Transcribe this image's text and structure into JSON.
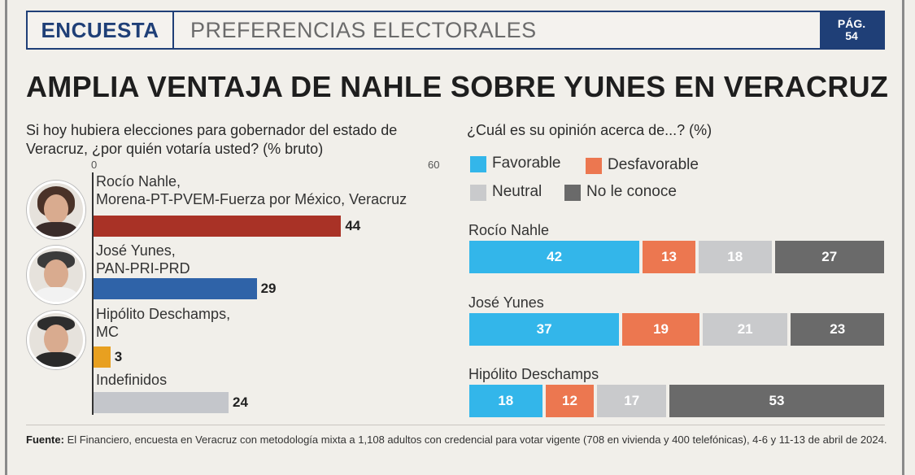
{
  "header": {
    "tag": "ENCUESTA",
    "section": "PREFERENCIAS ELECTORALES",
    "page_line1": "PÁG.",
    "page_line2": "54"
  },
  "headline": "AMPLIA VENTAJA DE NAHLE SOBRE YUNES EN VERACRUZ",
  "colors": {
    "navy": "#1f3f77",
    "nahle": "#a93226",
    "yunes": "#2f63a8",
    "deschamps": "#e8a020",
    "undecided": "#c4c6cb",
    "favorable": "#33b6ea",
    "desfavorable": "#ec7750",
    "neutral": "#c9cacc",
    "no_conoce": "#6a6a6a"
  },
  "chart_data": [
    {
      "type": "bar",
      "title": "Si hoy hubiera elecciones para gobernador del estado de Veracruz,  ¿por quién votaría usted? (% bruto)",
      "xlim": [
        0,
        60
      ],
      "tick_min": "0",
      "tick_max": "60",
      "categories": [
        {
          "name": "Rocío Nahle,",
          "party": "Morena-PT-PVEM-Fuerza por México, Veracruz"
        },
        {
          "name": "José Yunes,",
          "party": "PAN-PRI-PRD"
        },
        {
          "name": "Hipólito Deschamps,",
          "party": "MC"
        },
        {
          "name": "Indefinidos",
          "party": ""
        }
      ],
      "values": [
        44,
        29,
        3,
        24
      ],
      "value_labels": [
        "44",
        "29",
        "3",
        "24"
      ]
    },
    {
      "type": "bar",
      "stacked": true,
      "orientation": "horizontal",
      "title": "¿Cuál es su opinión acerca de...? (%)",
      "legend": [
        "Favorable",
        "Desfavorable",
        "Neutral",
        "No le conoce"
      ],
      "categories": [
        "Rocío Nahle",
        "José Yunes",
        "Hipólito Deschamps"
      ],
      "series": [
        {
          "name": "Favorable",
          "values": [
            42,
            37,
            18
          ]
        },
        {
          "name": "Desfavorable",
          "values": [
            13,
            19,
            12
          ]
        },
        {
          "name": "Neutral",
          "values": [
            18,
            21,
            17
          ]
        },
        {
          "name": "No le conoce",
          "values": [
            27,
            23,
            53
          ]
        }
      ]
    }
  ],
  "source": {
    "label": "Fuente:",
    "text": " El Financiero, encuesta en Veracruz con metodología mixta a 1,108 adultos con credencial para votar vigente (708 en vivienda y 400 telefónicas), 4-6 y 11-13 de abril de 2024."
  }
}
